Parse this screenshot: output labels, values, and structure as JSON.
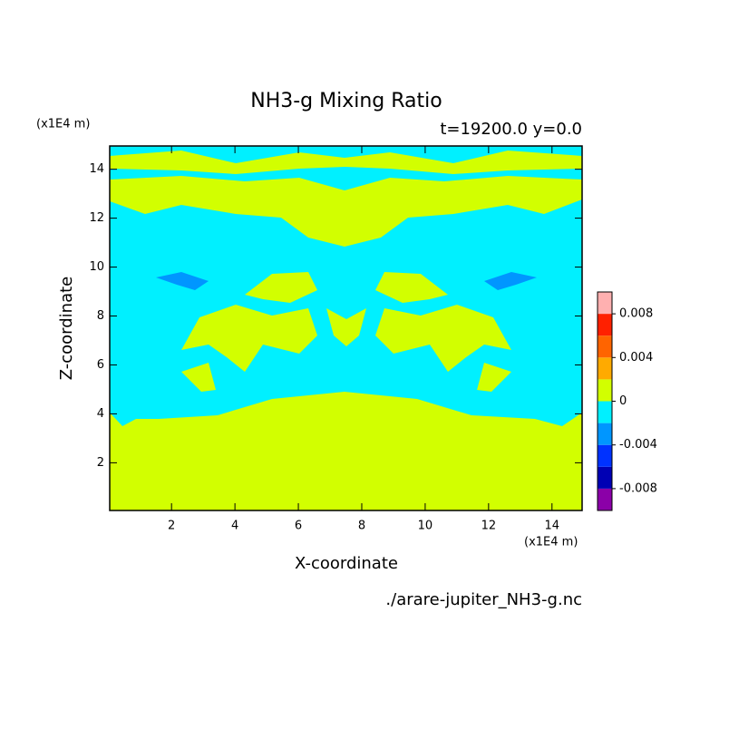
{
  "chart_data": {
    "type": "contour",
    "title": "NH3-g Mixing Ratio",
    "subtitle": "t=19200.0 y=0.0",
    "x_label": "X-coordinate",
    "y_label": "Z-coordinate",
    "x_unit": "(x1E4 m)",
    "y_unit": "(x1E4 m)",
    "source": "./arare-jupiter_NH3-g.nc",
    "xlim": [
      0.05,
      14.95
    ],
    "xticks": [
      2,
      4,
      6,
      8,
      10,
      12,
      14
    ],
    "ylim": [
      0.05,
      14.95
    ],
    "yticks": [
      2,
      4,
      6,
      8,
      10,
      12,
      14
    ],
    "levels": [
      -0.01,
      -0.008,
      -0.006,
      -0.004,
      -0.002,
      0,
      0.002,
      0.004,
      0.006,
      0.008,
      0.01
    ],
    "colors": [
      "#8b00a8",
      "#0000b4",
      "#0032ff",
      "#0096ff",
      "#00f0ff",
      "#d2ff00",
      "#ffaa00",
      "#ff6400",
      "#ff2000",
      "#ffb0b0"
    ],
    "colorbar_ticks": [
      -0.008,
      -0.004,
      0,
      0.004,
      0.008
    ]
  }
}
